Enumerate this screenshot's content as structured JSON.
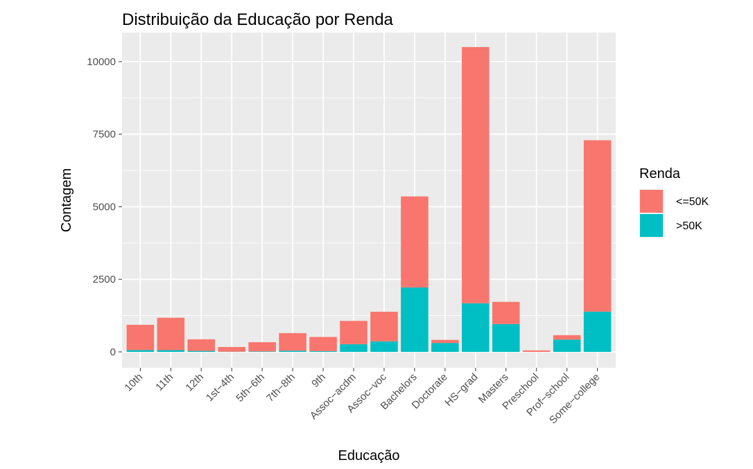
{
  "chart_data": {
    "type": "bar",
    "stacked": true,
    "title": "Distribuição da Educação por Renda",
    "xlabel": "Educação",
    "ylabel": "Contagem",
    "ylim": [
      -550,
      11000
    ],
    "yticks": [
      0,
      2500,
      5000,
      7500,
      10000
    ],
    "grid": true,
    "legend_position": "right",
    "legend_title": "Renda",
    "categories": [
      "10th",
      "11th",
      "12th",
      "1st−4th",
      "5th−6th",
      "7th−8th",
      "9th",
      "Assoc−acdm",
      "Assoc−voc",
      "Bachelors",
      "Doctorate",
      "HS−grad",
      "Masters",
      "Preschool",
      "Prof−school",
      "Some−college"
    ],
    "series": [
      {
        "name": "<=50K",
        "color": "#F8766D",
        "values": [
          871,
          1115,
          400,
          162,
          317,
          606,
          487,
          802,
          1021,
          3134,
          107,
          8826,
          764,
          51,
          153,
          5904
        ]
      },
      {
        "name": ">50K",
        "color": "#00BFC4",
        "values": [
          62,
          60,
          33,
          6,
          16,
          40,
          27,
          265,
          361,
          2221,
          306,
          1675,
          959,
          0,
          423,
          1387
        ]
      }
    ]
  }
}
